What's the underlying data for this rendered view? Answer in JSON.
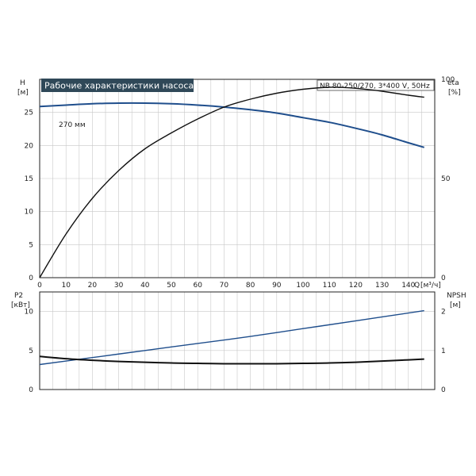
{
  "chart_data": [
    {
      "type": "line",
      "title": "Рабочие характеристики насоса",
      "model": "NB 80-250/270, 3*400 V, 50Hz",
      "xlabel": "Q",
      "xunit": "[м³/ч]",
      "xlim": [
        0,
        150
      ],
      "x_ticks": [
        0,
        10,
        20,
        30,
        40,
        50,
        60,
        70,
        80,
        90,
        100,
        110,
        120,
        130,
        140
      ],
      "left_axis": {
        "label": "H",
        "unit": "[м]",
        "lim": [
          0,
          30
        ],
        "ticks": [
          0,
          5,
          10,
          15,
          20,
          25
        ]
      },
      "right_axis": {
        "label": "eta",
        "unit": "[%]",
        "lim": [
          0,
          100
        ],
        "ticks": [
          0,
          50,
          100
        ]
      },
      "grid": true,
      "annotations": [
        "270 мм"
      ],
      "series": [
        {
          "axis": "left",
          "color": "#1f4e8c",
          "x": [
            0,
            10,
            20,
            30,
            40,
            50,
            60,
            70,
            80,
            90,
            100,
            110,
            120,
            130,
            140,
            146
          ],
          "y": [
            25.9,
            26.1,
            26.3,
            26.4,
            26.4,
            26.3,
            26.1,
            25.8,
            25.4,
            24.9,
            24.2,
            23.5,
            22.6,
            21.6,
            20.4,
            19.7
          ]
        },
        {
          "axis": "right",
          "color": "#111111",
          "x": [
            0,
            10,
            20,
            30,
            40,
            50,
            60,
            70,
            80,
            90,
            100,
            110,
            120,
            130,
            140,
            146
          ],
          "y": [
            0,
            22,
            40,
            54,
            65,
            73,
            80,
            86,
            90,
            93,
            95,
            96,
            95.5,
            94,
            92,
            91
          ]
        }
      ]
    },
    {
      "type": "line",
      "xlim": [
        0,
        150
      ],
      "left_axis": {
        "label": "P2",
        "unit": "[кВт]",
        "lim": [
          0,
          12.5
        ],
        "ticks": [
          0,
          5,
          10
        ]
      },
      "right_axis": {
        "label": "NPSH",
        "unit": "[м]",
        "lim": [
          0,
          2.5
        ],
        "ticks": [
          0,
          1,
          2
        ]
      },
      "grid": true,
      "series": [
        {
          "axis": "left",
          "color": "#1f4e8c",
          "x": [
            0,
            20,
            40,
            60,
            80,
            100,
            120,
            146
          ],
          "y": [
            3.2,
            4.1,
            5.0,
            5.9,
            6.8,
            7.8,
            8.8,
            10.1
          ]
        },
        {
          "axis": "right",
          "color": "#111111",
          "x": [
            0,
            10,
            20,
            30,
            40,
            50,
            60,
            70,
            80,
            90,
            100,
            110,
            120,
            130,
            140,
            146
          ],
          "y": [
            0.85,
            0.79,
            0.75,
            0.72,
            0.7,
            0.68,
            0.67,
            0.66,
            0.66,
            0.66,
            0.67,
            0.68,
            0.7,
            0.73,
            0.76,
            0.78
          ]
        }
      ]
    }
  ]
}
